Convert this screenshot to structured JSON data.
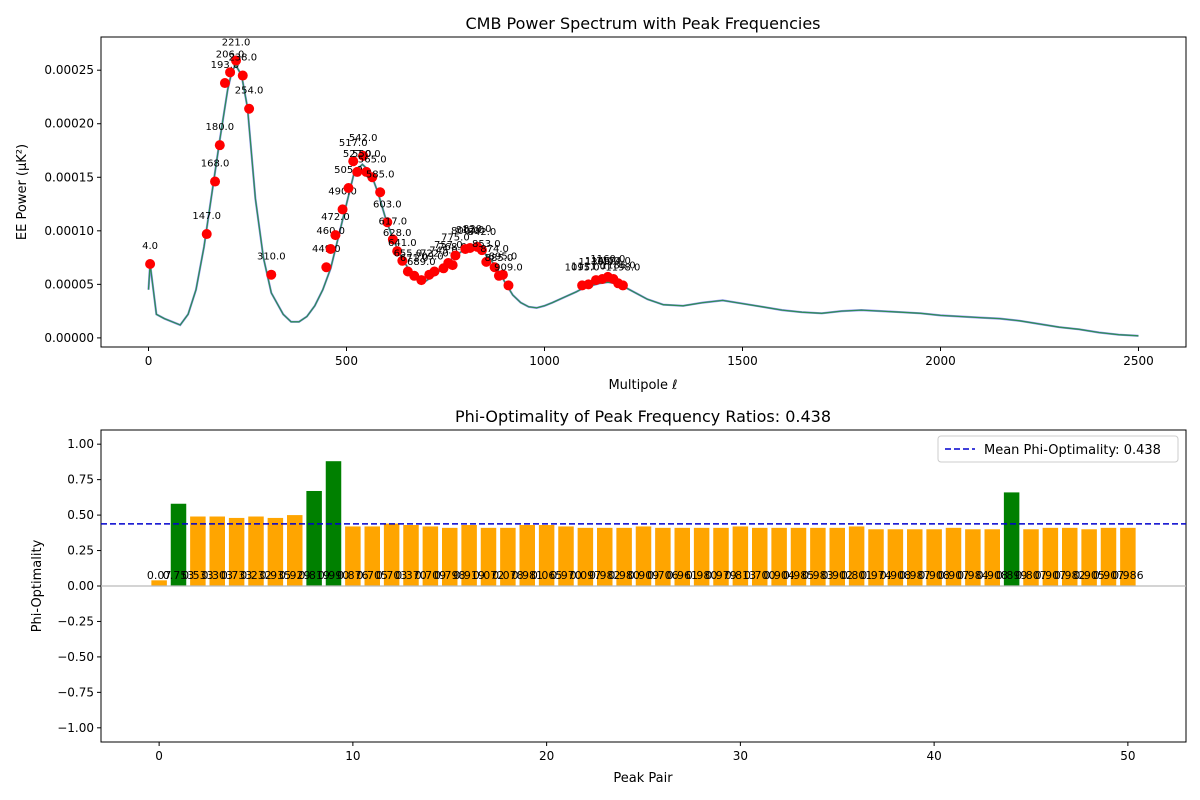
{
  "chart_data": [
    {
      "type": "line",
      "title": "CMB Power Spectrum with Peak Frequencies",
      "xlabel": "Multipole ℓ",
      "ylabel": "EE Power (μK²)",
      "xlim": [
        -120,
        2620
      ],
      "ylim": [
        -8.5e-06,
        0.000281
      ],
      "x_ticks": [
        0,
        500,
        1000,
        1500,
        2000,
        2500
      ],
      "x_tick_labels": [
        "0",
        "500",
        "1000",
        "1500",
        "2000",
        "2500"
      ],
      "y_ticks": [
        0.0,
        5e-05,
        0.0001,
        0.00015,
        0.0002,
        0.00025
      ],
      "y_tick_labels": [
        "0.00000",
        "0.00005",
        "0.00010",
        "0.00015",
        "0.00020",
        "0.00025"
      ],
      "grid": false,
      "colors": {
        "spectrum": "#6b6bf0",
        "smoothed": "#2e8b57",
        "peaks": "#ff0000"
      },
      "spectrum": {
        "x": [
          0,
          4,
          20,
          40,
          60,
          80,
          100,
          120,
          140,
          160,
          180,
          200,
          210,
          220,
          235,
          250,
          270,
          290,
          310,
          340,
          360,
          380,
          400,
          420,
          440,
          460,
          480,
          500,
          520,
          540,
          560,
          580,
          600,
          620,
          640,
          660,
          680,
          700,
          720,
          740,
          760,
          780,
          800,
          820,
          840,
          860,
          880,
          900,
          920,
          940,
          960,
          980,
          1000,
          1020,
          1050,
          1080,
          1100,
          1120,
          1140,
          1160,
          1180,
          1200,
          1230,
          1260,
          1300,
          1350,
          1400,
          1450,
          1500,
          1550,
          1600,
          1650,
          1700,
          1750,
          1800,
          1850,
          1900,
          1950,
          2000,
          2050,
          2100,
          2150,
          2200,
          2250,
          2300,
          2350,
          2400,
          2450,
          2500
        ],
        "y": [
          4.5e-05,
          6.9e-05,
          2.2e-05,
          1.8e-05,
          1.5e-05,
          1.2e-05,
          2.2e-05,
          4.5e-05,
          8.5e-05,
          0.000135,
          0.000185,
          0.000232,
          0.000248,
          0.000255,
          0.000245,
          0.000215,
          0.00013,
          7.5e-05,
          4.2e-05,
          2.2e-05,
          1.5e-05,
          1.5e-05,
          2e-05,
          3e-05,
          4.5e-05,
          6.5e-05,
          9.5e-05,
          0.000125,
          0.000155,
          0.000162,
          0.000155,
          0.000135,
          0.00011,
          9e-05,
          7.5e-05,
          6.2e-05,
          5.5e-05,
          5.3e-05,
          5.8e-05,
          6.4e-05,
          7.2e-05,
          7.8e-05,
          8.3e-05,
          8.5e-05,
          8.2e-05,
          7.5e-05,
          6.5e-05,
          5.2e-05,
          4e-05,
          3.3e-05,
          2.9e-05,
          2.8e-05,
          3e-05,
          3.3e-05,
          3.8e-05,
          4.3e-05,
          4.7e-05,
          4.9e-05,
          5.1e-05,
          5.2e-05,
          5.1e-05,
          4.8e-05,
          4.2e-05,
          3.6e-05,
          3.1e-05,
          3e-05,
          3.3e-05,
          3.5e-05,
          3.2e-05,
          2.9e-05,
          2.6e-05,
          2.4e-05,
          2.3e-05,
          2.5e-05,
          2.6e-05,
          2.5e-05,
          2.4e-05,
          2.3e-05,
          2.1e-05,
          2e-05,
          1.9e-05,
          1.8e-05,
          1.6e-05,
          1.3e-05,
          1e-05,
          8e-06,
          5e-06,
          3e-06,
          2e-06
        ]
      },
      "peaks": [
        {
          "x": 4,
          "y": 6.9e-05,
          "label": "4.0"
        },
        {
          "x": 147,
          "y": 9.7e-05,
          "label": "147.0"
        },
        {
          "x": 168,
          "y": 0.000146,
          "label": "168.0"
        },
        {
          "x": 180,
          "y": 0.00018,
          "label": "180.0"
        },
        {
          "x": 193,
          "y": 0.000238,
          "label": "193.0"
        },
        {
          "x": 206,
          "y": 0.000248,
          "label": "206.0"
        },
        {
          "x": 221,
          "y": 0.000259,
          "label": "221.0"
        },
        {
          "x": 238,
          "y": 0.000245,
          "label": "238.0"
        },
        {
          "x": 254,
          "y": 0.000214,
          "label": "254.0"
        },
        {
          "x": 310,
          "y": 5.9e-05,
          "label": "310.0"
        },
        {
          "x": 449,
          "y": 6.6e-05,
          "label": "449.0"
        },
        {
          "x": 460,
          "y": 8.3e-05,
          "label": "460.0"
        },
        {
          "x": 472,
          "y": 9.6e-05,
          "label": "472.0"
        },
        {
          "x": 490,
          "y": 0.00012,
          "label": "490.0"
        },
        {
          "x": 505,
          "y": 0.00014,
          "label": "505.0"
        },
        {
          "x": 517,
          "y": 0.000165,
          "label": "517.0"
        },
        {
          "x": 527,
          "y": 0.000155,
          "label": "527.0"
        },
        {
          "x": 542,
          "y": 0.00017,
          "label": "542.0"
        },
        {
          "x": 550,
          "y": 0.000155,
          "label": "550.0"
        },
        {
          "x": 565,
          "y": 0.00015,
          "label": "565.0"
        },
        {
          "x": 585,
          "y": 0.000136,
          "label": "585.0"
        },
        {
          "x": 603,
          "y": 0.000108,
          "label": "603.0"
        },
        {
          "x": 617,
          "y": 9.2e-05,
          "label": "617.0"
        },
        {
          "x": 628,
          "y": 8.1e-05,
          "label": "628.0"
        },
        {
          "x": 641,
          "y": 7.2e-05,
          "label": "641.0"
        },
        {
          "x": 655,
          "y": 6.2e-05,
          "label": "655.0"
        },
        {
          "x": 671,
          "y": 5.8e-05,
          "label": "671.0"
        },
        {
          "x": 689,
          "y": 5.4e-05,
          "label": "689.0"
        },
        {
          "x": 709,
          "y": 5.9e-05,
          "label": "709.0"
        },
        {
          "x": 722,
          "y": 6.2e-05,
          "label": "722.0"
        },
        {
          "x": 745,
          "y": 6.5e-05,
          "label": "745.0"
        },
        {
          "x": 757,
          "y": 7e-05,
          "label": "757.0"
        },
        {
          "x": 768,
          "y": 6.8e-05,
          "label": "768.0"
        },
        {
          "x": 775,
          "y": 7.7e-05,
          "label": "775.0"
        },
        {
          "x": 800,
          "y": 8.3e-05,
          "label": "800.0"
        },
        {
          "x": 812,
          "y": 8.4e-05,
          "label": "812.0"
        },
        {
          "x": 830,
          "y": 8.5e-05,
          "label": "830.0"
        },
        {
          "x": 842,
          "y": 8.2e-05,
          "label": "842.0"
        },
        {
          "x": 853,
          "y": 7.1e-05,
          "label": "853.0"
        },
        {
          "x": 874,
          "y": 6.6e-05,
          "label": "874.0"
        },
        {
          "x": 885,
          "y": 5.8e-05,
          "label": "885.0"
        },
        {
          "x": 895,
          "y": 5.9e-05,
          "label": "895.0"
        },
        {
          "x": 909,
          "y": 4.9e-05,
          "label": "909.0"
        },
        {
          "x": 1095,
          "y": 4.9e-05,
          "label": "1095.0"
        },
        {
          "x": 1111,
          "y": 5e-05,
          "label": "1111.0"
        },
        {
          "x": 1130,
          "y": 5.4e-05,
          "label": "1130.0"
        },
        {
          "x": 1146,
          "y": 5.5e-05,
          "label": "1146.0"
        },
        {
          "x": 1160,
          "y": 5.7e-05,
          "label": "1160.0"
        },
        {
          "x": 1174,
          "y": 5.5e-05,
          "label": "1174.0"
        },
        {
          "x": 1186,
          "y": 5.1e-05,
          "label": "1186.0"
        },
        {
          "x": 1198,
          "y": 4.9e-05,
          "label": "1198.0"
        }
      ]
    },
    {
      "type": "bar",
      "title": "Phi-Optimality of Peak Frequency Ratios: 0.438",
      "xlabel": "Peak Pair",
      "ylabel": "Phi-Optimality",
      "xlim": [
        -3,
        53
      ],
      "ylim": [
        -1.1,
        1.1
      ],
      "x_ticks": [
        0,
        10,
        20,
        30,
        40,
        50
      ],
      "x_tick_labels": [
        "0",
        "10",
        "20",
        "30",
        "40",
        "50"
      ],
      "y_ticks": [
        -1.0,
        -0.75,
        -0.5,
        -0.25,
        0.0,
        0.25,
        0.5,
        0.75,
        1.0
      ],
      "y_tick_labels": [
        "−1.00",
        "−0.75",
        "−0.50",
        "−0.25",
        "0.00",
        "0.25",
        "0.50",
        "0.75",
        "1.00"
      ],
      "grid": false,
      "legend": {
        "position": "top-right",
        "entries": [
          "Mean Phi-Optimality: 0.438"
        ]
      },
      "mean_line": 0.438,
      "colors": {
        "high": "#008000",
        "normal": "#ffa500",
        "mean": "#0000cd",
        "zero": "#bbbbbb"
      },
      "values": [
        0.04,
        0.58,
        0.49,
        0.49,
        0.48,
        0.49,
        0.48,
        0.5,
        0.67,
        0.88,
        0.42,
        0.42,
        0.44,
        0.43,
        0.42,
        0.41,
        0.43,
        0.41,
        0.41,
        0.43,
        0.43,
        0.42,
        0.41,
        0.41,
        0.41,
        0.42,
        0.41,
        0.41,
        0.41,
        0.41,
        0.42,
        0.41,
        0.41,
        0.41,
        0.41,
        0.41,
        0.42,
        0.4,
        0.4,
        0.4,
        0.4,
        0.41,
        0.4,
        0.4,
        0.66,
        0.4,
        0.41,
        0.41,
        0.4,
        0.41,
        0.41
      ],
      "labels": [
        "0.07",
        "0.753",
        "0.533",
        "0.303",
        "0.733",
        "0.232",
        "0.935",
        "0.929",
        "0.819",
        "0.990",
        "0.876",
        "0.705",
        "0.703",
        "0.370",
        "0.709",
        "0.798",
        "0.919",
        "0.072",
        "0.078",
        "0.981",
        "0.065",
        "0.970",
        "0.097",
        "0.982",
        "0.980",
        "0.909",
        "0.706",
        "0.961",
        "0.980",
        "0.979",
        "0.813",
        "0.700",
        "0.904",
        "0.985",
        "0.983",
        "0.902",
        "0.801",
        "0.974",
        "0.908",
        "0.987",
        "0.908",
        "0.907",
        "0.984",
        "0.908",
        "0.899",
        "0.807",
        "0.907",
        "0.982",
        "0.905",
        "0.907",
        "0.986"
      ]
    }
  ]
}
